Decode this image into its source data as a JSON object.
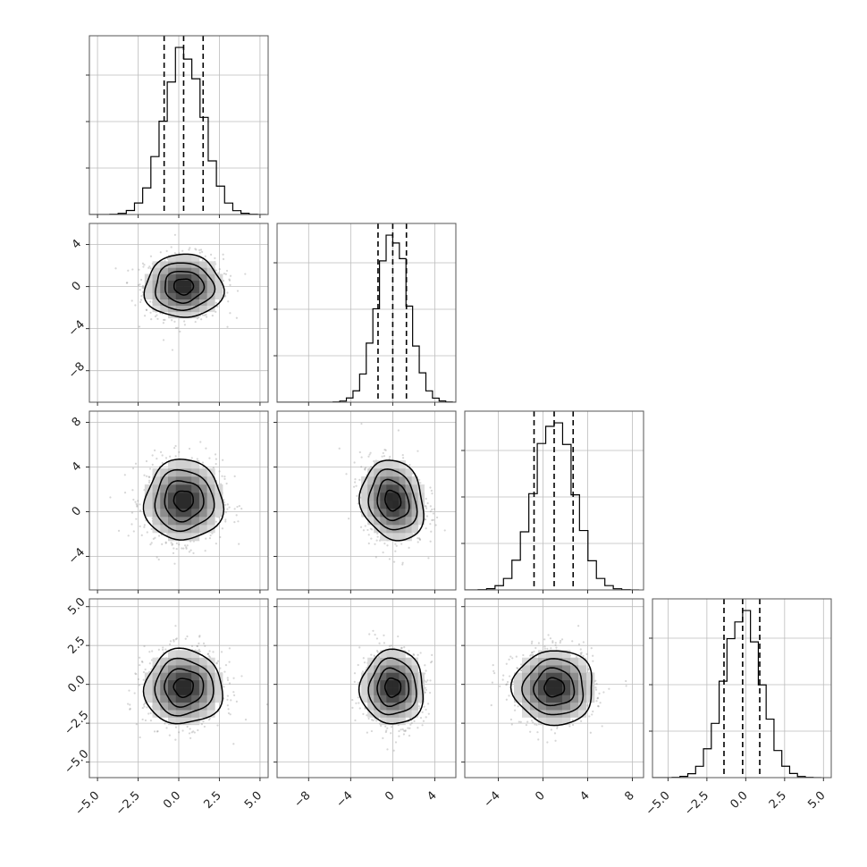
{
  "chart_data": {
    "type": "corner",
    "parameters": 4,
    "title": "",
    "grid": true,
    "histogram_bins": 20,
    "quantiles": [
      0.16,
      0.5,
      0.84
    ],
    "axes": [
      {
        "index": 0,
        "range": [
          -5.5,
          5.5
        ],
        "x_ticks": [
          -5.0,
          -2.5,
          0.0,
          2.5,
          5.0
        ],
        "x_tick_labels": [
          "−5.0",
          "−2.5",
          "0.0",
          "2.5",
          "5.0"
        ],
        "mean": 0.3,
        "sd": 1.2,
        "quantile_values": [
          -0.9,
          0.3,
          1.5
        ]
      },
      {
        "index": 1,
        "range": [
          -11,
          6
        ],
        "x_ticks": [
          -8,
          -4,
          0,
          4
        ],
        "x_tick_labels": [
          "−8",
          "−4",
          "0",
          "4"
        ],
        "y_ticks": [
          -8,
          -4,
          0,
          4
        ],
        "y_tick_labels": [
          "−8",
          "−4",
          "0",
          "4"
        ],
        "mean": 0.0,
        "sd": 1.5,
        "quantile_values": [
          -1.4,
          0.0,
          1.3
        ]
      },
      {
        "index": 2,
        "range": [
          -7,
          9
        ],
        "x_ticks": [
          -4,
          0,
          4,
          8
        ],
        "x_tick_labels": [
          "−4",
          "0",
          "4",
          "8"
        ],
        "y_ticks": [
          -4,
          0,
          4,
          8
        ],
        "y_tick_labels": [
          "−4",
          "0",
          "4",
          "8"
        ],
        "mean": 1.0,
        "sd": 1.8,
        "quantile_values": [
          -0.8,
          1.0,
          2.7
        ]
      },
      {
        "index": 3,
        "range": [
          -6,
          5.5
        ],
        "x_ticks": [
          -5.0,
          -2.5,
          0.0,
          2.5,
          5.0
        ],
        "x_tick_labels": [
          "−5.0",
          "−2.5",
          "0.0",
          "2.5",
          "5.0"
        ],
        "y_ticks": [
          -5.0,
          -2.5,
          0.0,
          2.5,
          5.0
        ],
        "y_tick_labels": [
          "−5.0",
          "−2.5",
          "0.0",
          "2.5",
          "5.0"
        ],
        "mean": -0.2,
        "sd": 1.2,
        "quantile_values": [
          -1.4,
          -0.2,
          0.9
        ]
      }
    ],
    "panels": [
      {
        "row": 1,
        "col": 0,
        "type": "2d",
        "corr": 0.0,
        "x_mean": 0.3,
        "y_mean": 0.0
      },
      {
        "row": 2,
        "col": 0,
        "type": "2d",
        "corr": 0.0,
        "x_mean": 0.3,
        "y_mean": 1.0
      },
      {
        "row": 2,
        "col": 1,
        "type": "2d",
        "corr": -0.15,
        "x_mean": 0.0,
        "y_mean": 1.0
      },
      {
        "row": 3,
        "col": 0,
        "type": "2d",
        "corr": 0.0,
        "x_mean": 0.3,
        "y_mean": -0.2
      },
      {
        "row": 3,
        "col": 1,
        "type": "2d",
        "corr": 0.0,
        "x_mean": 0.0,
        "y_mean": -0.2
      },
      {
        "row": 3,
        "col": 2,
        "type": "2d",
        "corr": 0.0,
        "x_mean": 1.0,
        "y_mean": -0.2
      }
    ],
    "contour_levels_sigma": [
      0.5,
      1.0,
      1.5,
      2.0
    ],
    "colors": {
      "line": "#000000",
      "scatter": "#8a8a8a",
      "density_dark": "#2b2b2b",
      "grid": "#bdbdbd"
    }
  }
}
